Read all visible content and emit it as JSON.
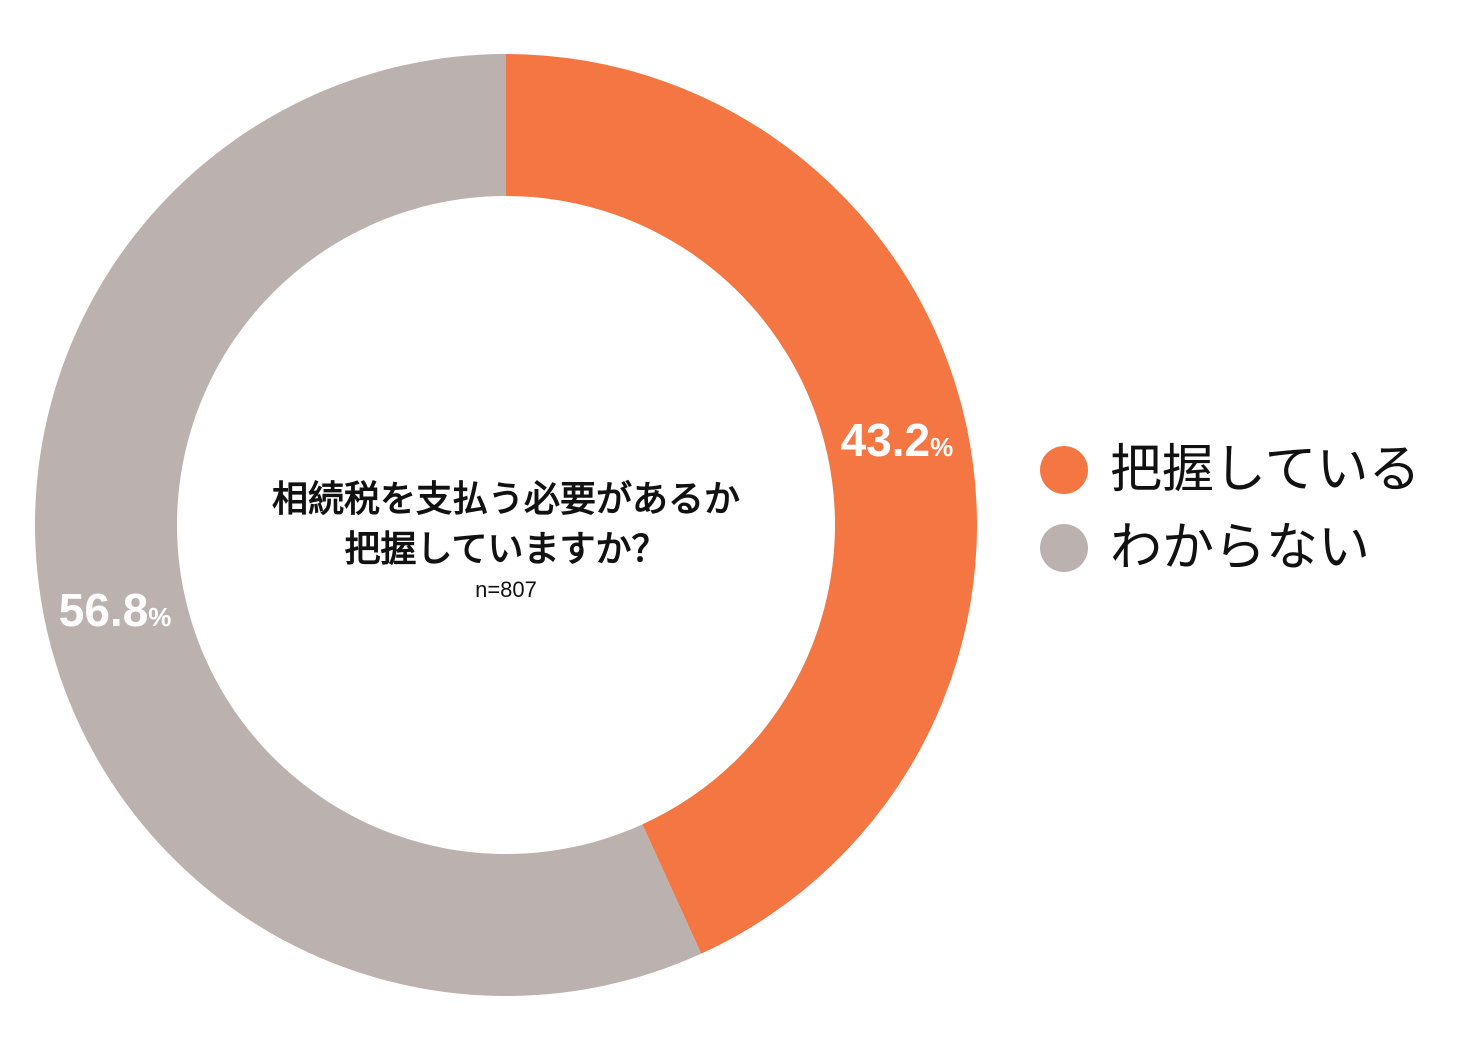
{
  "chart_data": {
    "type": "pie",
    "title": "相続税を支払う必要があるか 把握していますか？",
    "title_lines": [
      "相続税を支払う必要があるか",
      "把握していますか？"
    ],
    "subtitle": "n=807",
    "donut": true,
    "legend_position": "right",
    "categories": [
      "把握している",
      "わからない"
    ],
    "values": [
      43.2,
      56.8
    ],
    "value_labels": [
      "43.2",
      "56.8"
    ],
    "value_unit": "%",
    "colors": [
      "#F47642",
      "#BBB1AF"
    ]
  }
}
